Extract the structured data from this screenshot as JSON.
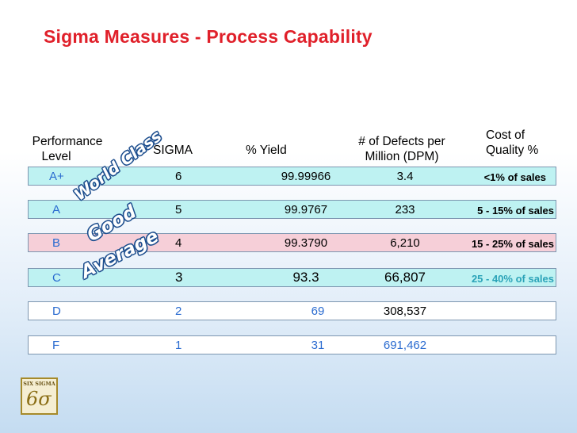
{
  "title": "Sigma Measures - Process Capability",
  "headers": {
    "performance_level_1": "Performance",
    "performance_level_2": "Level",
    "sigma": "SIGMA",
    "yield": "% Yield",
    "defects_1": "# of Defects per",
    "defects_2": "Million (DPM)",
    "cost_1": "Cost of",
    "cost_2": "Quality %"
  },
  "rows": [
    {
      "level": "A+",
      "sigma": "6",
      "yield": "99.99966",
      "dpm": "3.4",
      "cost": "<1% of sales",
      "bg": "#bef2f2"
    },
    {
      "level": "A",
      "sigma": "5",
      "yield": "99.9767",
      "dpm": "233",
      "cost": "5 - 15% of sales",
      "bg": "#bef2f2"
    },
    {
      "level": "B",
      "sigma": "4",
      "yield": "99.3790",
      "dpm": "6,210",
      "cost": "15 - 25% of sales",
      "bg": "#f6cfd8"
    },
    {
      "level": "C",
      "sigma": "3",
      "yield": "93.3",
      "dpm": "66,807",
      "cost": "25 - 40% of sales",
      "bg": "#bef2f2"
    },
    {
      "level": "D",
      "sigma": "2",
      "yield": "69",
      "dpm": "308,537",
      "cost": "",
      "bg": "#ffffff"
    },
    {
      "level": "F",
      "sigma": "1",
      "yield": "31",
      "dpm": "691,462",
      "cost": "",
      "bg": "#ffffff"
    }
  ],
  "diagonal_labels": {
    "world_class": "World Class",
    "good": "Good",
    "average": "Average"
  },
  "logo": {
    "top_text": "SIX SIGMA",
    "glyph": "6σ"
  }
}
